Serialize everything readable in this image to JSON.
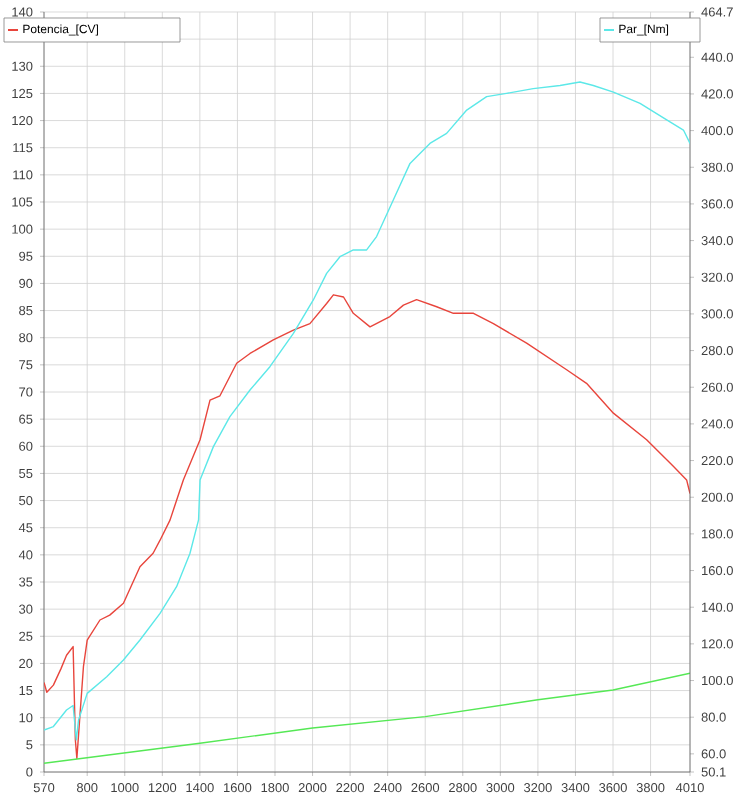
{
  "chart_data": {
    "type": "line",
    "xlim": [
      570,
      4010
    ],
    "xticks": [
      570,
      800,
      1000,
      1200,
      1400,
      1600,
      1800,
      2000,
      2200,
      2400,
      2600,
      2800,
      3000,
      3200,
      3400,
      3600,
      3800,
      4010
    ],
    "ylim": [
      0,
      140
    ],
    "yticks": [
      0,
      5,
      10,
      15,
      20,
      25,
      30,
      35,
      40,
      45,
      50,
      55,
      60,
      65,
      70,
      75,
      80,
      85,
      90,
      95,
      100,
      105,
      110,
      115,
      120,
      125,
      130,
      {
        "value": 135,
        "label": null
      },
      140
    ],
    "y2lim": [
      50.1,
      464.7
    ],
    "y2ticks": [
      50.1,
      {
        "value": 60,
        "label": "60.0"
      },
      {
        "value": 80,
        "label": "80.0"
      },
      {
        "value": 100,
        "label": "100.0"
      },
      {
        "value": 120,
        "label": "120.0"
      },
      {
        "value": 140,
        "label": "140.0"
      },
      {
        "value": 160,
        "label": "160.0"
      },
      {
        "value": 180,
        "label": "180.0"
      },
      {
        "value": 200,
        "label": "200.0"
      },
      {
        "value": 220,
        "label": "220.0"
      },
      {
        "value": 240,
        "label": "240.0"
      },
      {
        "value": 260,
        "label": "260.0"
      },
      {
        "value": 280,
        "label": "280.0"
      },
      {
        "value": 300,
        "label": "300.0"
      },
      {
        "value": 320,
        "label": "320.0"
      },
      {
        "value": 340,
        "label": "340.0"
      },
      {
        "value": 360,
        "label": "360.0"
      },
      {
        "value": 380,
        "label": "380.0"
      },
      {
        "value": 400,
        "label": "400.0"
      },
      {
        "value": 420,
        "label": "420.0"
      },
      {
        "value": 440,
        "label": "440.0"
      },
      464.7
    ],
    "grid": true,
    "legend": "top",
    "marker": "none",
    "line_style": "solid",
    "series": [
      {
        "name": "Potencia_[CV]",
        "color": "#e8453c",
        "x": [
          570,
          585,
          620,
          660,
          690,
          725,
          737,
          745,
          780,
          800,
          868,
          920,
          993,
          1081,
          1151,
          1188,
          1241,
          1312,
          1401,
          1454,
          1507,
          1596,
          1667,
          1791,
          1898,
          1986,
          2075,
          2111,
          2165,
          2217,
          2306,
          2412,
          2484,
          2554,
          2661,
          2750,
          2857,
          2963,
          3140,
          3353,
          3459,
          3602,
          3779,
          3921,
          3992,
          4010
        ],
        "values": [
          16.5,
          14.7,
          16,
          19,
          21.5,
          23.1,
          5.9,
          2.5,
          19.4,
          24.3,
          28,
          28.9,
          31.1,
          37.8,
          40.3,
          42.7,
          46.4,
          53.8,
          61.2,
          68.5,
          69.3,
          75.3,
          77.1,
          79.6,
          81.4,
          82.6,
          86.3,
          87.9,
          87.5,
          84.5,
          82,
          83.9,
          86,
          87,
          85.7,
          84.5,
          84.5,
          82.6,
          79,
          74.1,
          71.6,
          66.1,
          61.2,
          56.3,
          53.8,
          51.3
        ]
      },
      {
        "name": "Par_[Nm]",
        "color": "#5ce8e8",
        "axis": "y2",
        "x": [
          570,
          620,
          690,
          725,
          742,
          754,
          800,
          904,
          993,
          1081,
          1188,
          1276,
          1347,
          1393,
          1401,
          1472,
          1560,
          1667,
          1773,
          1898,
          2004,
          2075,
          2146,
          2217,
          2288,
          2341,
          2430,
          2519,
          2625,
          2714,
          2821,
          2927,
          3033,
          3175,
          3318,
          3424,
          3495,
          3602,
          3744,
          3886,
          3975,
          4010
        ],
        "values": [
          73,
          74.9,
          83.9,
          86.4,
          67.6,
          78.5,
          93,
          102.1,
          111.2,
          122.1,
          136.6,
          151.2,
          169.3,
          187.6,
          209.4,
          227.6,
          244,
          258.5,
          271.2,
          289.4,
          307.6,
          322.1,
          331.2,
          334.9,
          334.9,
          342.2,
          362.1,
          382.1,
          393,
          398.5,
          411.2,
          418.5,
          420.3,
          422.9,
          424.6,
          426.5,
          424.6,
          421,
          414.8,
          405.8,
          400.3,
          393
        ]
      },
      {
        "color": "#55e855",
        "x": [
          570,
          1400,
          2000,
          2600,
          3200,
          3600,
          4010
        ],
        "values": [
          1.6,
          5.3,
          8.1,
          10.2,
          13.3,
          15.1,
          18.2
        ]
      }
    ]
  }
}
